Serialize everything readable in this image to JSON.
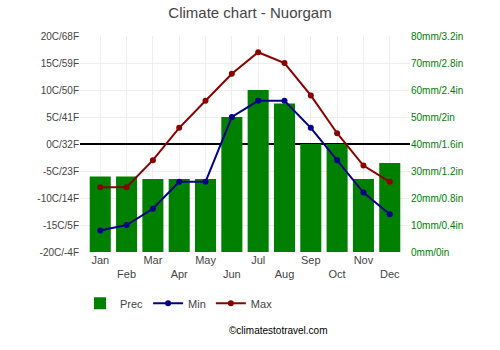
{
  "chart_data": {
    "type": "bar",
    "title": "Climate chart - Nuorgam",
    "categories": [
      "Jan",
      "Feb",
      "Mar",
      "Apr",
      "May",
      "Jun",
      "Jul",
      "Aug",
      "Sep",
      "Oct",
      "Nov",
      "Dec"
    ],
    "series": [
      {
        "name": "Prec",
        "type": "bar",
        "axis": "y2",
        "color": "#008000",
        "values": [
          28,
          28,
          27,
          27,
          27,
          50,
          60,
          55,
          40,
          40,
          27,
          33
        ]
      },
      {
        "name": "Min",
        "type": "line",
        "color": "#00008B",
        "marker": "o",
        "line_style": "solid",
        "values": [
          -16,
          -15,
          -12,
          -7,
          -7,
          5,
          8,
          8,
          3,
          -3,
          -9,
          -13
        ]
      },
      {
        "name": "Max",
        "type": "line",
        "color": "#8B0000",
        "marker": "o",
        "line_style": "solid",
        "values": [
          -8,
          -8,
          -3,
          3,
          8,
          13,
          17,
          15,
          9,
          2,
          -4,
          -7
        ]
      }
    ],
    "ylim": [
      -20,
      20
    ],
    "yticks": [
      {
        "value": -20,
        "label": "-20C/-4F"
      },
      {
        "value": -15,
        "label": "-15C/5F"
      },
      {
        "value": -10,
        "label": "-10C/14F"
      },
      {
        "value": -5,
        "label": "-5C/23F"
      },
      {
        "value": 0,
        "label": "0C/32F"
      },
      {
        "value": 5,
        "label": "5C/41F"
      },
      {
        "value": 10,
        "label": "10C/50F"
      },
      {
        "value": 15,
        "label": "15C/59F"
      },
      {
        "value": 20,
        "label": "20C/68F"
      }
    ],
    "y2lim": [
      0,
      80
    ],
    "y2ticks": [
      {
        "value": 0,
        "label": "0mm/0in"
      },
      {
        "value": 10,
        "label": "10mm/0.4in"
      },
      {
        "value": 20,
        "label": "20mm/0.8in"
      },
      {
        "value": 30,
        "label": "30mm/1.2in"
      },
      {
        "value": 40,
        "label": "40mm/1.6in"
      },
      {
        "value": 50,
        "label": "50mm/2in"
      },
      {
        "value": 60,
        "label": "60mm/2.4in"
      },
      {
        "value": 70,
        "label": "70mm/2.8in"
      },
      {
        "value": 80,
        "label": "80mm/3.2in"
      }
    ],
    "grid": true,
    "legend": "lower left",
    "annotations": [
      "©climatestotravel.com"
    ]
  }
}
